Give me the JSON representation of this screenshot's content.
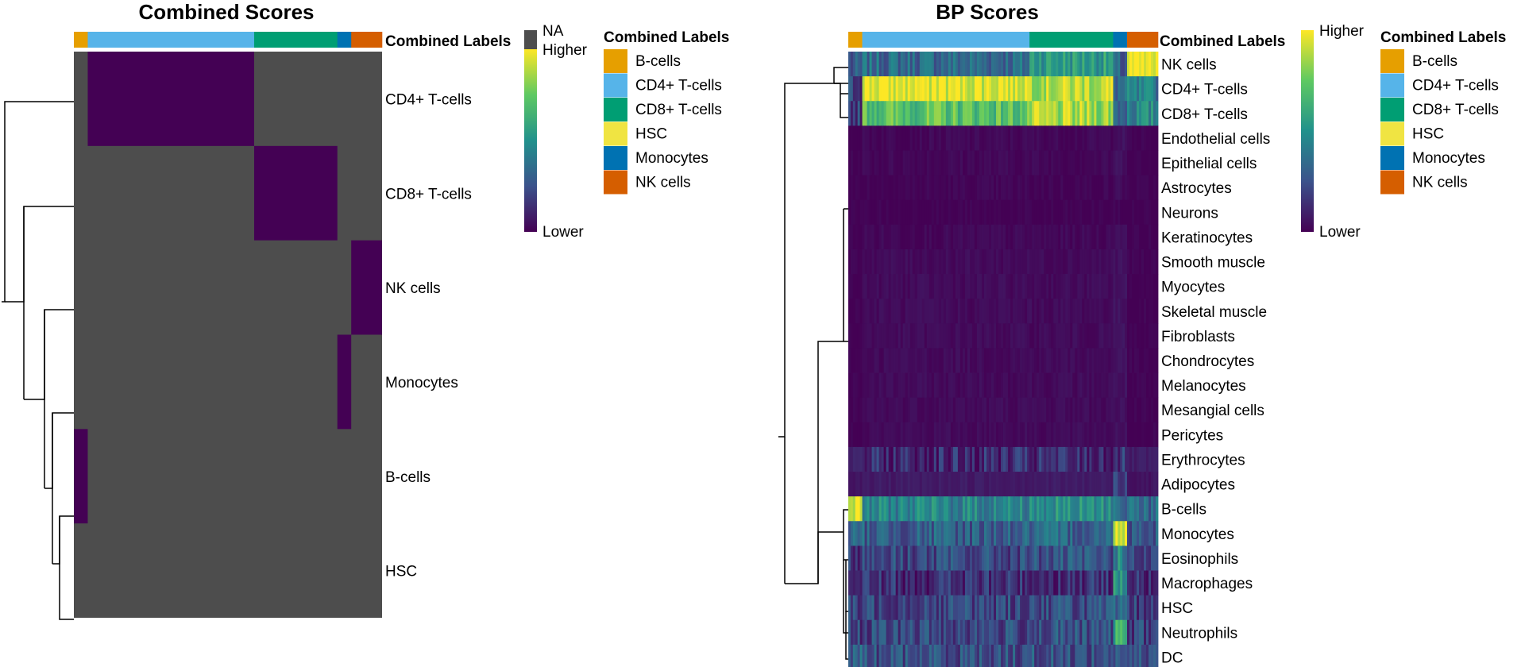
{
  "chart_data": [
    {
      "type": "heatmap",
      "title": "Combined Scores",
      "annotation_label": "Combined Labels",
      "column_groups": [
        {
          "label": "B-cells",
          "fraction": 0.045
        },
        {
          "label": "CD4+ T-cells",
          "fraction": 0.54
        },
        {
          "label": "CD8+ T-cells",
          "fraction": 0.27
        },
        {
          "label": "Monocytes",
          "fraction": 0.045
        },
        {
          "label": "NK cells",
          "fraction": 0.1
        }
      ],
      "rows": [
        "CD4+ T-cells",
        "CD8+ T-cells",
        "NK cells",
        "Monocytes",
        "B-cells",
        "HSC"
      ],
      "na_color": "#4d4d4d",
      "value_color": "#440154",
      "note": "Each cell's score shown only for its own combined label; all other entries NA",
      "colorbar": {
        "na_label": "NA",
        "high_label": "Higher",
        "low_label": "Lower"
      },
      "legend": {
        "title": "Combined Labels"
      }
    },
    {
      "type": "heatmap",
      "title": "BP Scores",
      "annotation_label": "Combined Labels",
      "column_groups": [
        {
          "label": "B-cells",
          "fraction": 0.045
        },
        {
          "label": "CD4+ T-cells",
          "fraction": 0.54
        },
        {
          "label": "CD8+ T-cells",
          "fraction": 0.27
        },
        {
          "label": "Monocytes",
          "fraction": 0.045
        },
        {
          "label": "NK cells",
          "fraction": 0.1
        }
      ],
      "rows": [
        "NK cells",
        "CD4+ T-cells",
        "CD8+ T-cells",
        "Endothelial cells",
        "Epithelial cells",
        "Astrocytes",
        "Neurons",
        "Keratinocytes",
        "Smooth muscle",
        "Myocytes",
        "Skeletal muscle",
        "Fibroblasts",
        "Chondrocytes",
        "Melanocytes",
        "Mesangial cells",
        "Pericytes",
        "Erythrocytes",
        "Adipocytes",
        "B-cells",
        "Monocytes",
        "Eosinophils",
        "Macrophages",
        "HSC",
        "Neutrophils",
        "DC"
      ],
      "row_group_scores": [
        [
          0.25,
          0.35,
          0.55,
          0.28,
          0.95
        ],
        [
          0.2,
          0.97,
          0.9,
          0.35,
          0.4
        ],
        [
          0.2,
          0.72,
          0.85,
          0.35,
          0.45
        ],
        [
          0.0,
          0.02,
          0.02,
          0.05,
          0.0
        ],
        [
          0.0,
          0.02,
          0.02,
          0.05,
          0.0
        ],
        [
          0.0,
          0.01,
          0.01,
          0.03,
          0.0
        ],
        [
          0.0,
          0.0,
          0.0,
          0.0,
          0.0
        ],
        [
          0.0,
          0.02,
          0.02,
          0.05,
          0.0
        ],
        [
          0.0,
          0.03,
          0.03,
          0.05,
          0.0
        ],
        [
          0.0,
          0.03,
          0.03,
          0.05,
          0.0
        ],
        [
          0.0,
          0.03,
          0.03,
          0.05,
          0.0
        ],
        [
          0.0,
          0.03,
          0.03,
          0.05,
          0.0
        ],
        [
          0.0,
          0.03,
          0.03,
          0.05,
          0.0
        ],
        [
          0.0,
          0.03,
          0.03,
          0.05,
          0.0
        ],
        [
          0.0,
          0.03,
          0.03,
          0.05,
          0.0
        ],
        [
          0.0,
          0.03,
          0.03,
          0.05,
          0.0
        ],
        [
          0.1,
          0.12,
          0.12,
          0.15,
          0.08
        ],
        [
          0.05,
          0.08,
          0.08,
          0.2,
          0.06
        ],
        [
          0.97,
          0.45,
          0.48,
          0.38,
          0.35
        ],
        [
          0.3,
          0.3,
          0.32,
          0.97,
          0.3
        ],
        [
          0.18,
          0.22,
          0.25,
          0.45,
          0.18
        ],
        [
          0.1,
          0.14,
          0.14,
          0.55,
          0.12
        ],
        [
          0.18,
          0.22,
          0.24,
          0.28,
          0.18
        ],
        [
          0.2,
          0.22,
          0.24,
          0.6,
          0.2
        ],
        [
          0.3,
          0.25,
          0.25,
          0.28,
          0.22
        ]
      ],
      "colorbar": {
        "high_label": "Higher",
        "low_label": "Lower"
      },
      "legend": {
        "title": "Combined Labels"
      }
    }
  ],
  "legend_entries": [
    {
      "label": "B-cells",
      "color": "#e69f00"
    },
    {
      "label": "CD4+ T-cells",
      "color": "#56b4e9"
    },
    {
      "label": "CD8+ T-cells",
      "color": "#009e73"
    },
    {
      "label": "HSC",
      "color": "#f0e442"
    },
    {
      "label": "Monocytes",
      "color": "#0072b2"
    },
    {
      "label": "NK cells",
      "color": "#d55e00"
    }
  ]
}
